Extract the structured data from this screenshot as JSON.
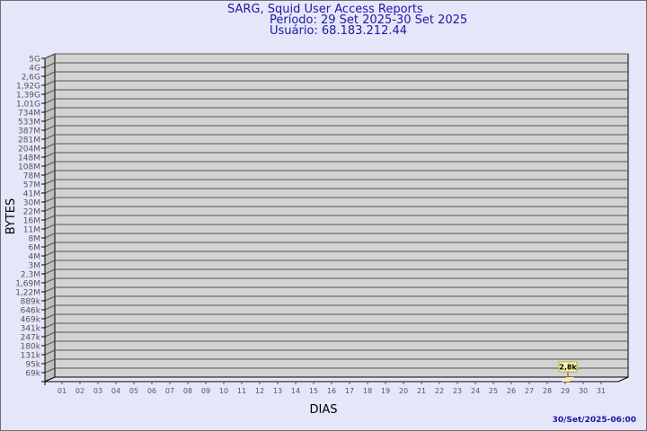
{
  "header": {
    "title": "SARG, Squid User Access Reports",
    "period": "Período: 29 Set 2025-30 Set 2025",
    "user": "Usuário: 68.183.212.44"
  },
  "footer": {
    "timestamp": "30/Set/2025-06:00"
  },
  "chart_data": {
    "type": "bar",
    "title": "SARG, Squid User Access Reports",
    "xlabel": "DIAS",
    "ylabel": "BYTES",
    "y_scale": "log",
    "grid": true,
    "y_ticks": [
      "69k",
      "95k",
      "131k",
      "180k",
      "247k",
      "341k",
      "469k",
      "646k",
      "889k",
      "1,22M",
      "1,69M",
      "2,3M",
      "3M",
      "4M",
      "6M",
      "8M",
      "11M",
      "16M",
      "22M",
      "30M",
      "41M",
      "57M",
      "78M",
      "108M",
      "148M",
      "204M",
      "281M",
      "387M",
      "533M",
      "734M",
      "1,01G",
      "1,39G",
      "1,92G",
      "2,6G",
      "4G",
      "5G"
    ],
    "categories": [
      "01",
      "02",
      "03",
      "04",
      "05",
      "06",
      "07",
      "08",
      "09",
      "10",
      "11",
      "12",
      "13",
      "14",
      "15",
      "16",
      "17",
      "18",
      "19",
      "20",
      "21",
      "22",
      "23",
      "24",
      "25",
      "26",
      "27",
      "28",
      "29",
      "30",
      "31"
    ],
    "values": [
      null,
      null,
      null,
      null,
      null,
      null,
      null,
      null,
      null,
      null,
      null,
      null,
      null,
      null,
      null,
      null,
      null,
      null,
      null,
      null,
      null,
      null,
      null,
      null,
      null,
      null,
      null,
      null,
      2800,
      null,
      null
    ],
    "data_labels": {
      "29": "2,8k"
    },
    "colors": {
      "background": "#e6e6fa",
      "plot": "#d3d3d3",
      "bar": "#ffe9a0",
      "text": "#1a1aa0",
      "tick_text": "#555555"
    }
  }
}
